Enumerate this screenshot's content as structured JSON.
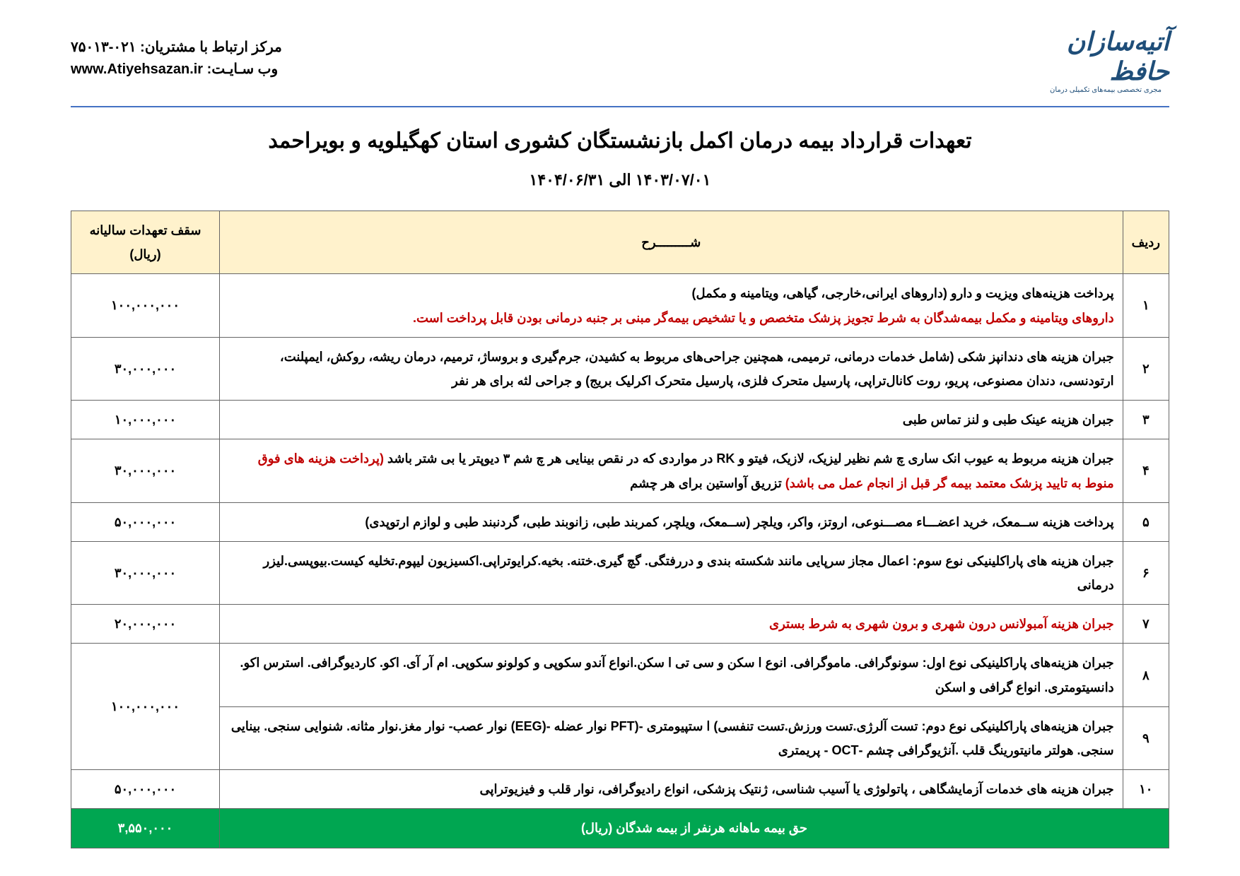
{
  "colors": {
    "header_bg": "#fff2cc",
    "footer_bg": "#00a651",
    "footer_text": "#ffffff",
    "red_text": "#c00000",
    "border": "#666666",
    "hr": "#4472c4",
    "logo": "#1f4e79",
    "text": "#000000"
  },
  "header": {
    "logo_main": "آتیه‌سازان حافظ",
    "logo_sub": "مجری تخصصی بیمه‌های تکمیلی درمان",
    "contact_label": "مرکز ارتباط با مشتریان:",
    "contact_value": "۷۵۰۱۳-۰۲۱",
    "website_label": "وب سـایـت:",
    "website_value": "www.Atiyehsazan.ir"
  },
  "title": "تعهدات قرارداد بیمه درمان اکمل  بازنشستگان کشوری استان کهگیلویه و بویراحمد",
  "dates": "۱۴۰۳/۰۷/۰۱ الی ۱۴۰۴/۰۶/۳۱",
  "table": {
    "headers": {
      "row": "ردیف",
      "desc": "شـــــــــرح",
      "amount": "سقف تعهدات سالیانه (ریال)"
    },
    "rows": [
      {
        "num": "۱",
        "desc": "پرداخت هزینه‌های ویزیت و دارو (داروهای ایرانی،خارجی، گیاهی، ویتامینه و مکمل)",
        "red": "داروهای ویتامینه و مکمل بیمه‌شدگان به شرط تجویز پزشک متخصص و یا تشخیص بیمه‌گر مبنی بر جنبه درمانی بودن قابل پرداخت است.",
        "amount": "۱۰۰,۰۰۰,۰۰۰"
      },
      {
        "num": "۲",
        "desc": "جبران هزینه های دندانپز شکی (شامل خدمات درمانی، ترمیمی، همچنین جراحی‌های مربوط به کشیدن، جرم‌گیری و بروساژ، ترمیم، درمان ریشه، روکش، ایمپلنت، ارتودنسی، دندان مصنوعی، پریو، روت کانال‌تراپی، پارسیل متحرک فلزی، پارسیل متحرک اکرلیک بریج) و جراحی لثه برای هر نفر",
        "amount": "۳۰,۰۰۰,۰۰۰"
      },
      {
        "num": "۳",
        "desc": "جبران هزینه عینک طبی و لنز تماس طبی",
        "amount": "۱۰,۰۰۰,۰۰۰"
      },
      {
        "num": "۴",
        "desc": "جبران هزینه مربوط به عیوب انک ساری چ شم نظیر لیزیک، لازیک، فیتو و RK در مواردی که در نقص بینایی هر چ شم ۳ دیوپتر یا بی شتر باشد ",
        "red": "(پرداخت هزینه های فوق منوط به تایید پزشک معتمد بیمه گر قبل از انجام عمل می باشد)",
        "desc_after": " تزریق آواستین برای هر چشم",
        "amount": "۳۰,۰۰۰,۰۰۰"
      },
      {
        "num": "۵",
        "desc": "پرداخت هزینه ســمعک، خرید اعضـــاء مصـــنوعی، اروتز، واکر، ویلچر (ســمعک، ویلچر، کمربند طبی، زانوبند طبی، گردنبند طبی و لوازم ارتوپدی)",
        "amount": "۵۰,۰۰۰,۰۰۰"
      },
      {
        "num": "۶",
        "desc": "جبران هزینه های پاراکلینیکی نوع سوم: اعمال مجاز سرپایی مانند شکسته بندی و دررفتگی. گچ گیری.ختنه. بخیه.کرایوتراپی.اکسیزیون لیپوم.تخلیه کیست.بیوپسی.لیزر درمانی",
        "amount": "۳۰,۰۰۰,۰۰۰"
      },
      {
        "num": "۷",
        "desc_red_full": "جبران هزینه آمبولانس درون شهری و برون شهری به شرط بستری",
        "amount": "۲۰,۰۰۰,۰۰۰"
      },
      {
        "num": "۸",
        "desc": "جبران هزینه‌های پاراکلینیکی نوع اول:  سونوگرافی. ماموگرافی. انوع ا سکن و  سی تی ا سکن.انواع آندو سکوپی و کولونو سکوپی. ام آر آی. اکو. کاردیوگرافی. استرس اکو. دانسیتومتری. انواع گرافی و اسکن",
        "amount_span": true
      },
      {
        "num": "۹",
        "desc": "جبران هزینه‌های پاراکلینیکی نوع دوم: تست آلرژی.تست ورزش.تست تنفسی) ا ستپیومتری -(PFT نوار عضله -(EEG) نوار عصب- نوار مغز.نوار مثانه. شنوایی سنجی. بینایی سنجی. هولتر مانیتورینگ قلب .آنژیوگرافی چشم -OCT - پریمتری"
      },
      {
        "num": "۱۰",
        "desc": "جبران هزینه های خدمات آزمایشگاهی ، پاتولوژی یا آسیب شناسی، ژنتیک پزشکی، انواع رادیوگرافی، نوار قلب و فیزیوتراپی",
        "amount": "۵۰,۰۰۰,۰۰۰"
      }
    ],
    "amount_8_9": "۱۰۰,۰۰۰,۰۰۰",
    "footer_label": "حق بیمه ماهانه هرنفر از بیمه شدگان (ریال)",
    "footer_amount": "۳,۵۵۰,۰۰۰"
  }
}
